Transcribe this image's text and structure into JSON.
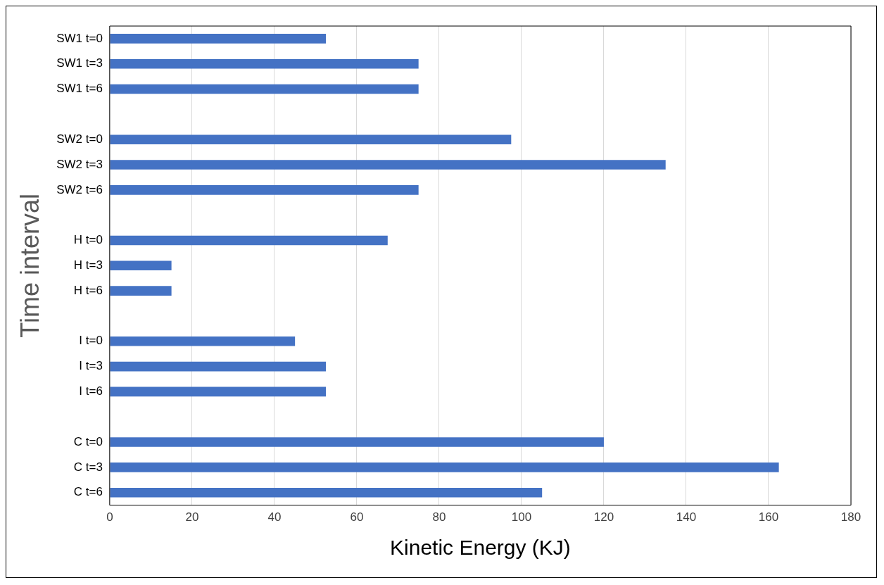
{
  "chart_data": {
    "type": "bar",
    "orientation": "horizontal",
    "xlabel": "Kinetic Energy (KJ)",
    "ylabel": "Time interval",
    "categories": [
      "SW1 t=0",
      "SW1 t=3",
      "SW1 t=6",
      null,
      "SW2 t=0",
      "SW2 t=3",
      "SW2 t=6",
      null,
      "H t=0",
      "H t=3",
      "H t=6",
      null,
      "I t=0",
      "I t=3",
      "I t=6",
      null,
      "C t=0",
      "C t=3",
      "C t=6"
    ],
    "values": [
      52.5,
      75,
      75,
      null,
      97.5,
      135,
      75,
      null,
      67.5,
      15,
      15,
      null,
      45,
      52.5,
      52.5,
      null,
      120,
      162.5,
      105
    ],
    "color": "#4472c4",
    "xlim": [
      0,
      180
    ],
    "xticks": [
      0,
      20,
      40,
      60,
      80,
      100,
      120,
      140,
      160,
      180
    ],
    "grid": "x",
    "legend": false
  }
}
